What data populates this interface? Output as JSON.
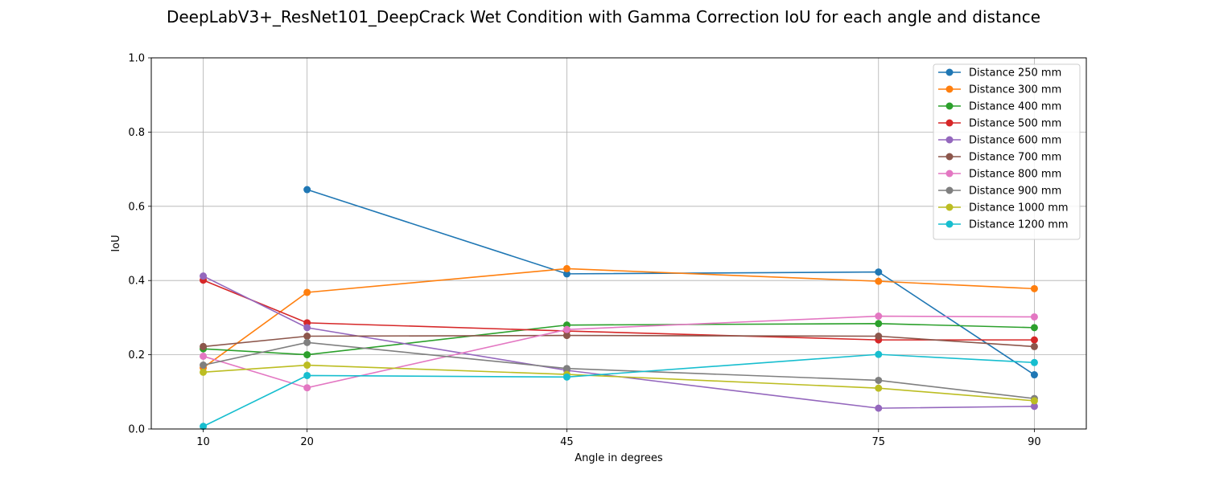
{
  "chart_data": {
    "type": "line",
    "title": "DeepLabV3+_ResNet101_DeepCrack Wet Condition with Gamma Correction IoU for each angle and distance",
    "xlabel": "Angle in degrees",
    "ylabel": "IoU",
    "x": [
      10,
      20,
      45,
      75,
      90
    ],
    "x_tick_labels": [
      "10",
      "20",
      "45",
      "75",
      "90"
    ],
    "xlim": [
      5,
      95
    ],
    "ylim": [
      0.0,
      1.0
    ],
    "y_ticks": [
      0.0,
      0.2,
      0.4,
      0.6,
      0.8,
      1.0
    ],
    "y_tick_labels": [
      "0.0",
      "0.2",
      "0.4",
      "0.6",
      "0.8",
      "1.0"
    ],
    "grid": true,
    "legend_position": "top-right",
    "series": [
      {
        "name": "Distance 250 mm",
        "color": "#1f77b4",
        "values": [
          null,
          0.645,
          0.418,
          0.423,
          0.146
        ]
      },
      {
        "name": "Distance 300 mm",
        "color": "#ff7f0e",
        "values": [
          0.165,
          0.368,
          0.432,
          0.398,
          0.378
        ]
      },
      {
        "name": "Distance 400 mm",
        "color": "#2ca02c",
        "values": [
          0.216,
          0.2,
          0.28,
          0.284,
          0.273
        ]
      },
      {
        "name": "Distance 500 mm",
        "color": "#d62728",
        "values": [
          0.401,
          0.286,
          0.264,
          0.24,
          0.24
        ]
      },
      {
        "name": "Distance 600 mm",
        "color": "#9467bd",
        "values": [
          0.412,
          0.273,
          0.158,
          0.056,
          0.061
        ]
      },
      {
        "name": "Distance 700 mm",
        "color": "#8c564b",
        "values": [
          0.222,
          0.25,
          0.252,
          0.25,
          0.222
        ]
      },
      {
        "name": "Distance 800 mm",
        "color": "#e377c2",
        "values": [
          0.196,
          0.111,
          0.268,
          0.304,
          0.302
        ]
      },
      {
        "name": "Distance 900 mm",
        "color": "#7f7f7f",
        "values": [
          0.172,
          0.233,
          0.163,
          0.131,
          0.082
        ]
      },
      {
        "name": "Distance 1000 mm",
        "color": "#bcbd22",
        "values": [
          0.153,
          0.172,
          0.147,
          0.11,
          0.076
        ]
      },
      {
        "name": "Distance 1200 mm",
        "color": "#17becf",
        "values": [
          0.007,
          0.144,
          0.14,
          0.201,
          0.179
        ]
      }
    ]
  }
}
